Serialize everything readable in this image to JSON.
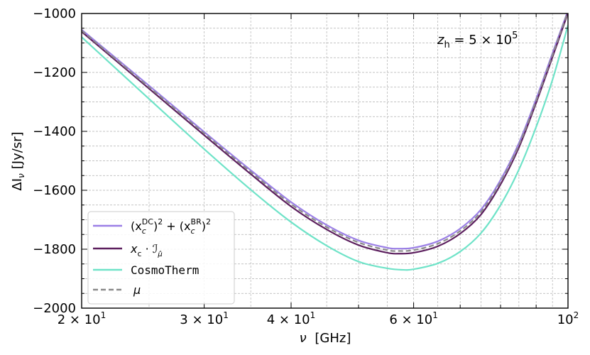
{
  "chart_data": {
    "type": "line",
    "title": "",
    "xlabel_symbol": "ν",
    "xlabel_unit": "[GHz]",
    "ylabel_symbol": "ΔI",
    "ylabel_sub": "ν",
    "ylabel_unit": "[Jy/sr]",
    "xscale": "log",
    "xlim": [
      20,
      100
    ],
    "ylim": [
      -2000,
      -1000
    ],
    "grid": true,
    "legend_position": "lower-left",
    "annotation": "z_h = 5 × 10^5",
    "x_ticks": [
      {
        "value": 20,
        "label": "2 × 10",
        "exp": "1"
      },
      {
        "value": 30,
        "label": "3 × 10",
        "exp": "1"
      },
      {
        "value": 40,
        "label": "4 × 10",
        "exp": "1"
      },
      {
        "value": 60,
        "label": "6 × 10",
        "exp": "1"
      },
      {
        "value": 100,
        "label": "10",
        "exp": "2"
      }
    ],
    "y_ticks": [
      {
        "value": -1000,
        "label": "−1000"
      },
      {
        "value": -1200,
        "label": "−1200"
      },
      {
        "value": -1400,
        "label": "−1400"
      },
      {
        "value": -1600,
        "label": "−1600"
      },
      {
        "value": -1800,
        "label": "−1800"
      },
      {
        "value": -2000,
        "label": "−2000"
      }
    ],
    "series": [
      {
        "name": "(x_c^DC)^2 + (x_c^BR)^2",
        "color": "#9b7fe6",
        "dash": "solid",
        "x": [
          20,
          25,
          30,
          35,
          40,
          45,
          50,
          55,
          57,
          60,
          65,
          70,
          75,
          80,
          85,
          90,
          95,
          100
        ],
        "y": [
          -1055,
          -1245,
          -1402,
          -1532,
          -1640,
          -1718,
          -1770,
          -1795,
          -1798,
          -1795,
          -1773,
          -1730,
          -1665,
          -1565,
          -1440,
          -1290,
          -1135,
          -990
        ]
      },
      {
        "name": "x_c · I_μ",
        "color": "#5c1f5e",
        "dash": "solid",
        "x": [
          20,
          25,
          30,
          35,
          40,
          45,
          50,
          55,
          57,
          60,
          65,
          70,
          75,
          80,
          85,
          90,
          95,
          100
        ],
        "y": [
          -1062,
          -1255,
          -1413,
          -1545,
          -1655,
          -1733,
          -1786,
          -1812,
          -1815,
          -1812,
          -1790,
          -1747,
          -1682,
          -1580,
          -1455,
          -1303,
          -1148,
          -998
        ]
      },
      {
        "name": "CosmoTherm",
        "color": "#6fe3c8",
        "dash": "solid",
        "x": [
          20,
          25,
          30,
          35,
          40,
          45,
          50,
          55,
          58,
          60,
          65,
          70,
          75,
          80,
          85,
          90,
          95,
          100
        ],
        "y": [
          -1080,
          -1290,
          -1460,
          -1598,
          -1708,
          -1788,
          -1842,
          -1865,
          -1870,
          -1868,
          -1848,
          -1808,
          -1745,
          -1650,
          -1530,
          -1385,
          -1225,
          -1040
        ]
      },
      {
        "name": "μ",
        "color": "#8a8a8a",
        "dash": "dashed",
        "x": [
          20,
          25,
          30,
          35,
          40,
          45,
          50,
          55,
          57,
          60,
          65,
          70,
          75,
          80,
          85,
          90,
          95,
          100
        ],
        "y": [
          -1058,
          -1250,
          -1407,
          -1538,
          -1647,
          -1725,
          -1777,
          -1803,
          -1806,
          -1803,
          -1781,
          -1738,
          -1673,
          -1572,
          -1447,
          -1296,
          -1141,
          -993
        ]
      }
    ]
  },
  "legend": {
    "items": [
      {
        "main": "(x",
        "sub": "c",
        "sup": "DC",
        "rest": ")",
        "exp2": "2",
        "plus": " + (x",
        "sub2": "c",
        "sup2": "BR",
        "rest2": ")",
        "exp3": "2"
      },
      {
        "main": "x",
        "sub": "c",
        "rest": " · ",
        "script": "ℐ",
        "script_sub": "μ̂"
      },
      {
        "main": "CosmoTherm"
      },
      {
        "main": "μ"
      }
    ]
  },
  "annotation": {
    "z": "z",
    "z_sub": "h",
    "eq": " = 5 × 10",
    "exp": "5"
  }
}
